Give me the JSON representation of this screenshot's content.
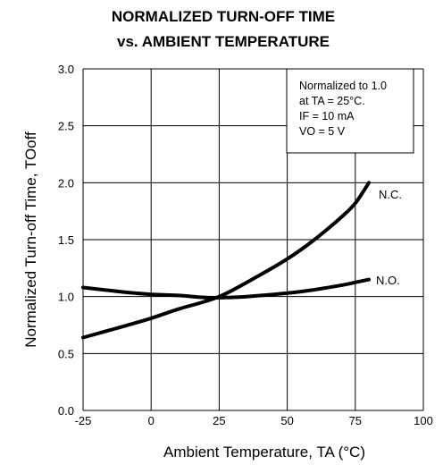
{
  "chart_data": {
    "type": "line",
    "title_line1": "NORMALIZED TURN-OFF TIME",
    "title_line2": "vs. AMBIENT TEMPERATURE",
    "xlabel": "Ambient Temperature, TA (°C)",
    "ylabel": "Normalized Turn-off Time, TOoff",
    "xlim": [
      -25,
      100
    ],
    "ylim": [
      0.0,
      3.0
    ],
    "x_ticks": [
      "-25",
      "0",
      "25",
      "50",
      "75",
      "100"
    ],
    "x_tick_values": [
      -25,
      0,
      25,
      50,
      75,
      100
    ],
    "y_ticks": [
      "0.0",
      "0.5",
      "1.0",
      "1.5",
      "2.0",
      "2.5",
      "3.0"
    ],
    "y_tick_values": [
      0.0,
      0.5,
      1.0,
      1.5,
      2.0,
      2.5,
      3.0
    ],
    "grid": true,
    "conditions": [
      "Normalized to 1.0",
      "at TA = 25°C.",
      "IF = 10 mA",
      "VO = 5 V"
    ],
    "series": [
      {
        "name": "N.C.",
        "x": [
          -25,
          -10,
          0,
          10,
          25,
          40,
          50,
          60,
          70,
          75,
          80
        ],
        "values": [
          0.64,
          0.74,
          0.81,
          0.89,
          1.0,
          1.19,
          1.33,
          1.5,
          1.7,
          1.82,
          2.0
        ]
      },
      {
        "name": "N.O.",
        "x": [
          -25,
          -10,
          0,
          10,
          22,
          35,
          50,
          60,
          70,
          80
        ],
        "values": [
          1.08,
          1.04,
          1.02,
          1.01,
          0.99,
          1.0,
          1.03,
          1.06,
          1.1,
          1.15
        ]
      }
    ]
  }
}
